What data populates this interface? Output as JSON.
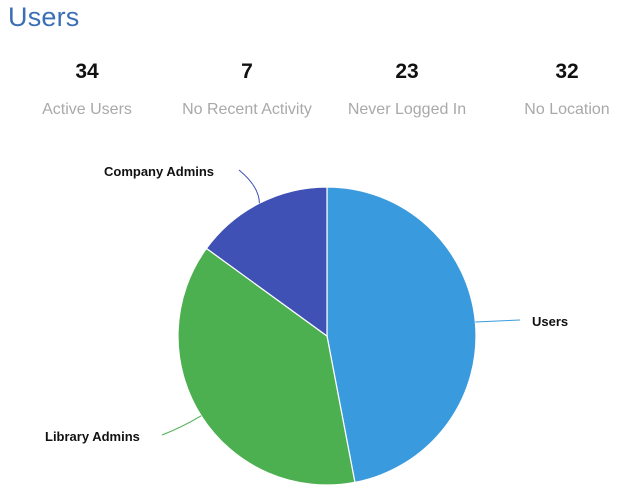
{
  "header": {
    "title": "Users"
  },
  "stats": [
    {
      "value": "34",
      "label": "Active Users"
    },
    {
      "value": "7",
      "label": "No Recent Activity"
    },
    {
      "value": "23",
      "label": "Never Logged In"
    },
    {
      "value": "32",
      "label": "No Location"
    }
  ],
  "chart_data": {
    "type": "pie",
    "title": "",
    "slices": [
      {
        "label": "Users",
        "value": 47,
        "color": "#3a9ade"
      },
      {
        "label": "Library Admins",
        "value": 38,
        "color": "#4caf50"
      },
      {
        "label": "Company Admins",
        "value": 15,
        "color": "#3f51b5"
      }
    ],
    "legend": "none",
    "labels": "outside-with-leader-lines"
  }
}
